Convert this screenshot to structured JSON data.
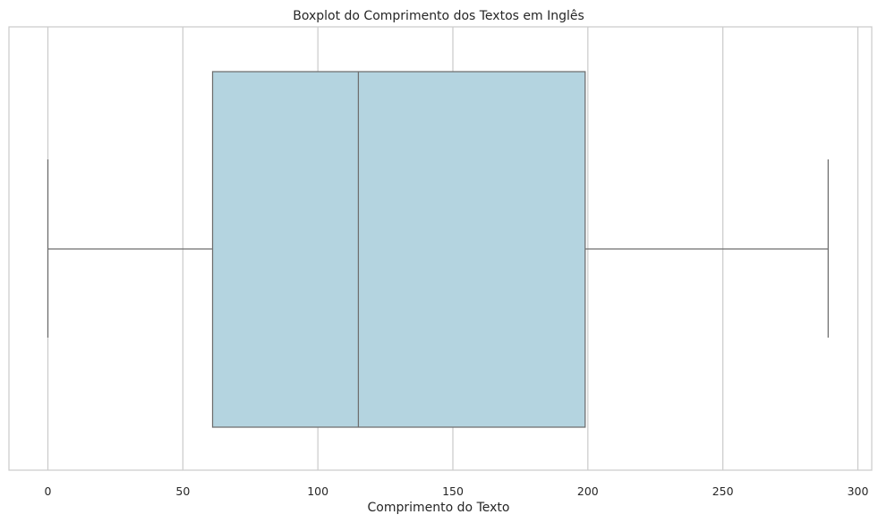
{
  "chart_data": {
    "type": "boxplot",
    "title": "Boxplot do Comprimento dos Textos em Inglês",
    "xlabel": "Comprimento do Texto",
    "ylabel": "",
    "xlim": [
      -14,
      302
    ],
    "xticks": [
      0,
      50,
      100,
      150,
      200,
      250,
      300
    ],
    "xtick_labels": [
      "0",
      "50",
      "100",
      "150",
      "200",
      "250",
      "300"
    ],
    "grid": true,
    "orientation": "horizontal",
    "box": {
      "whisker_low": 0,
      "q1": 61,
      "median": 115,
      "q3": 199,
      "whisker_high": 289
    },
    "colors": {
      "box_fill": "#b4d4e0",
      "line": "#6e6e6e",
      "grid": "#cccccc",
      "frame": "#cccccc"
    }
  }
}
